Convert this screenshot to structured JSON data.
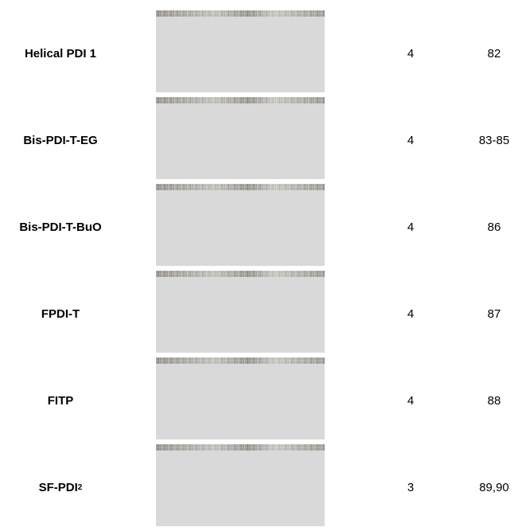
{
  "rows": [
    {
      "name": "Helical PDI 1",
      "sub": "",
      "count": "4",
      "ref": "82"
    },
    {
      "name": "Bis-PDI-T-EG",
      "sub": "",
      "count": "4",
      "ref": "83-85"
    },
    {
      "name": "Bis-PDI-T-BuO",
      "sub": "",
      "count": "4",
      "ref": "86"
    },
    {
      "name": "FPDI-T",
      "sub": "",
      "count": "4",
      "ref": "87"
    },
    {
      "name": "FITP",
      "sub": "",
      "count": "4",
      "ref": "88"
    },
    {
      "name": "SF-PDI",
      "sub": "2",
      "count": "3",
      "ref": "89,90"
    }
  ]
}
